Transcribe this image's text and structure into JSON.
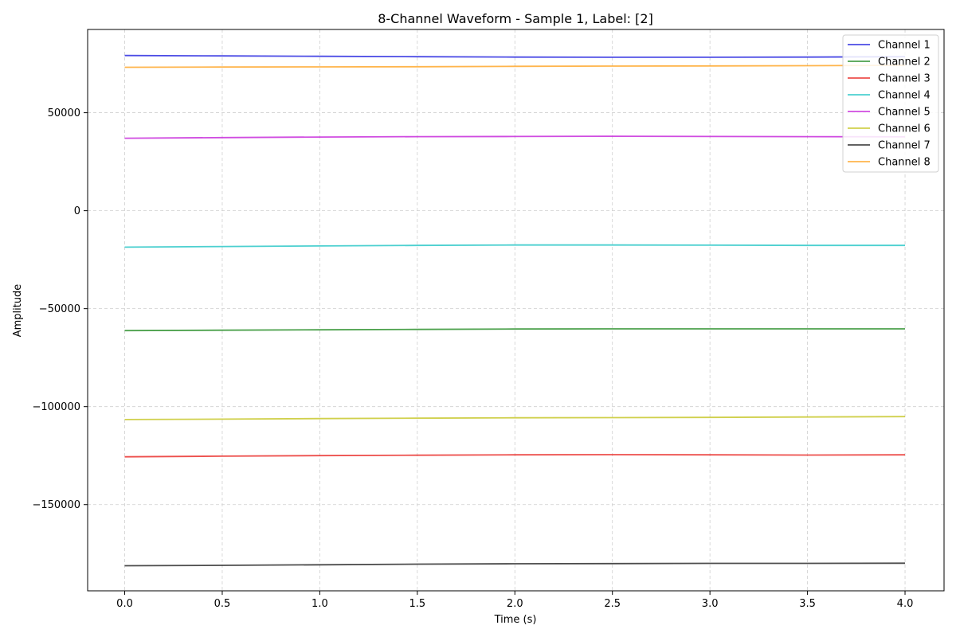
{
  "chart_data": {
    "type": "line",
    "title": "8-Channel Waveform - Sample 1, Label: [2]",
    "xlabel": "Time (s)",
    "ylabel": "Amplitude",
    "xlim": [
      -0.19,
      4.2
    ],
    "ylim": [
      -194000,
      92500
    ],
    "xticks": [
      0.0,
      0.5,
      1.0,
      1.5,
      2.0,
      2.5,
      3.0,
      3.5,
      4.0
    ],
    "xtick_labels": [
      "0.0",
      "0.5",
      "1.0",
      "1.5",
      "2.0",
      "2.5",
      "3.0",
      "3.5",
      "4.0"
    ],
    "yticks": [
      -150000,
      -100000,
      -50000,
      0,
      50000
    ],
    "ytick_labels": [
      "−150000",
      "−100000",
      "−50000",
      "0",
      "50000"
    ],
    "grid": true,
    "legend_position": "top-right",
    "x": [
      0.0,
      0.5,
      1.0,
      1.5,
      2.0,
      2.5,
      3.0,
      3.5,
      4.0
    ],
    "series": [
      {
        "name": "Channel 1",
        "color": "#1f1fdf",
        "values": [
          79200,
          79000,
          78800,
          78600,
          78400,
          78300,
          78300,
          78400,
          78600
        ]
      },
      {
        "name": "Channel 2",
        "color": "#1f8a1f",
        "values": [
          -61200,
          -61000,
          -60800,
          -60600,
          -60400,
          -60300,
          -60300,
          -60300,
          -60300
        ]
      },
      {
        "name": "Channel 3",
        "color": "#e8231f",
        "values": [
          -125600,
          -125300,
          -125000,
          -124800,
          -124600,
          -124500,
          -124600,
          -124700,
          -124600
        ]
      },
      {
        "name": "Channel 4",
        "color": "#1fc4c4",
        "values": [
          -18600,
          -18300,
          -18000,
          -17700,
          -17500,
          -17500,
          -17600,
          -17700,
          -17700
        ]
      },
      {
        "name": "Channel 5",
        "color": "#c41fd9",
        "values": [
          37000,
          37300,
          37600,
          37800,
          37900,
          38000,
          37900,
          37800,
          37700
        ]
      },
      {
        "name": "Channel 6",
        "color": "#c4c41f",
        "values": [
          -106600,
          -106400,
          -106100,
          -105900,
          -105700,
          -105600,
          -105500,
          -105300,
          -105100
        ]
      },
      {
        "name": "Channel 7",
        "color": "#1f1f1f",
        "values": [
          -181200,
          -181000,
          -180700,
          -180400,
          -180200,
          -180100,
          -180000,
          -180000,
          -179900
        ]
      },
      {
        "name": "Channel 8",
        "color": "#ffa31f",
        "values": [
          73200,
          73300,
          73400,
          73500,
          73700,
          73800,
          73900,
          74000,
          74200
        ]
      }
    ]
  }
}
